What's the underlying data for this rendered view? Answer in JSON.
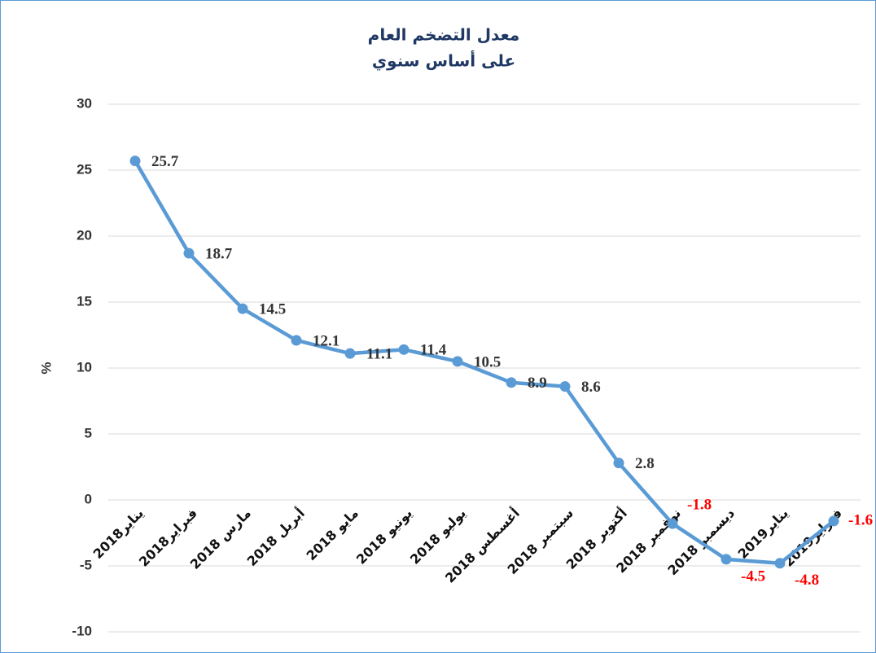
{
  "chart_data": {
    "type": "line",
    "title": [
      "معدل التضخم العام",
      "على أساس سنوي"
    ],
    "y_label": "%",
    "categories": [
      "يناير2018",
      "فبراير2018",
      "مارس 2018",
      "أبريل 2018",
      "مايو 2018",
      "يونيو 2018",
      "يوليو 2018",
      "أغسطس 2018",
      "سبتمبر 2018",
      "أكتوبر 2018",
      "نوفمبر 2018",
      "ديسمبر 2018",
      "يناير2019",
      "فبراير2019"
    ],
    "series": [
      {
        "name": "معدل التضخم العام",
        "color": "#5b9bd5",
        "values": [
          25.7,
          18.7,
          14.5,
          12.1,
          11.1,
          11.4,
          10.5,
          8.9,
          8.6,
          2.8,
          -1.8,
          -4.5,
          -4.8,
          -1.6
        ]
      }
    ],
    "ylim": [
      -10,
      30
    ],
    "yticks": [
      -10,
      -5,
      0,
      5,
      10,
      15,
      20,
      25,
      30
    ],
    "grid": true,
    "label_color": "#333333",
    "negative_label_color": "#ff0000"
  }
}
